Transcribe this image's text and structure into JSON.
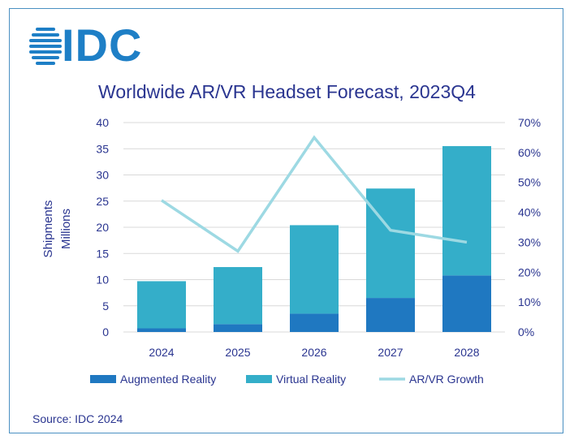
{
  "brand": {
    "logo_text": "IDC",
    "logo_color": "#1e7fc6"
  },
  "chart_data": {
    "type": "bar",
    "title": "Worldwide AR/VR Headset Forecast, 2023Q4",
    "ylabel": "Shipments\nMillions",
    "y2label": "",
    "categories": [
      "2024",
      "2025",
      "2026",
      "2027",
      "2028"
    ],
    "ylim": [
      0,
      40
    ],
    "yticks": [
      "0",
      "5",
      "10",
      "15",
      "20",
      "25",
      "30",
      "35",
      "40"
    ],
    "y2lim": [
      0,
      0.7
    ],
    "y2ticks": [
      "0%",
      "10%",
      "20%",
      "30%",
      "40%",
      "50%",
      "60%",
      "70%"
    ],
    "stacked": true,
    "series": [
      {
        "name": "Augmented Reality",
        "type": "bar",
        "axis": "left",
        "color": "#1f78c1",
        "values": [
          0.7,
          1.5,
          3.5,
          6.5,
          10.8
        ]
      },
      {
        "name": "Virtual Reality",
        "type": "bar",
        "axis": "left",
        "color": "#34aec9",
        "values": [
          9.0,
          10.9,
          16.9,
          20.9,
          24.7
        ]
      },
      {
        "name": "AR/VR Growth",
        "type": "line",
        "axis": "right",
        "color": "#9dd9e3",
        "values": [
          0.44,
          0.27,
          0.65,
          0.34,
          0.3
        ]
      }
    ],
    "grid": true,
    "legend": "bottom"
  },
  "source": "Source: IDC 2024"
}
